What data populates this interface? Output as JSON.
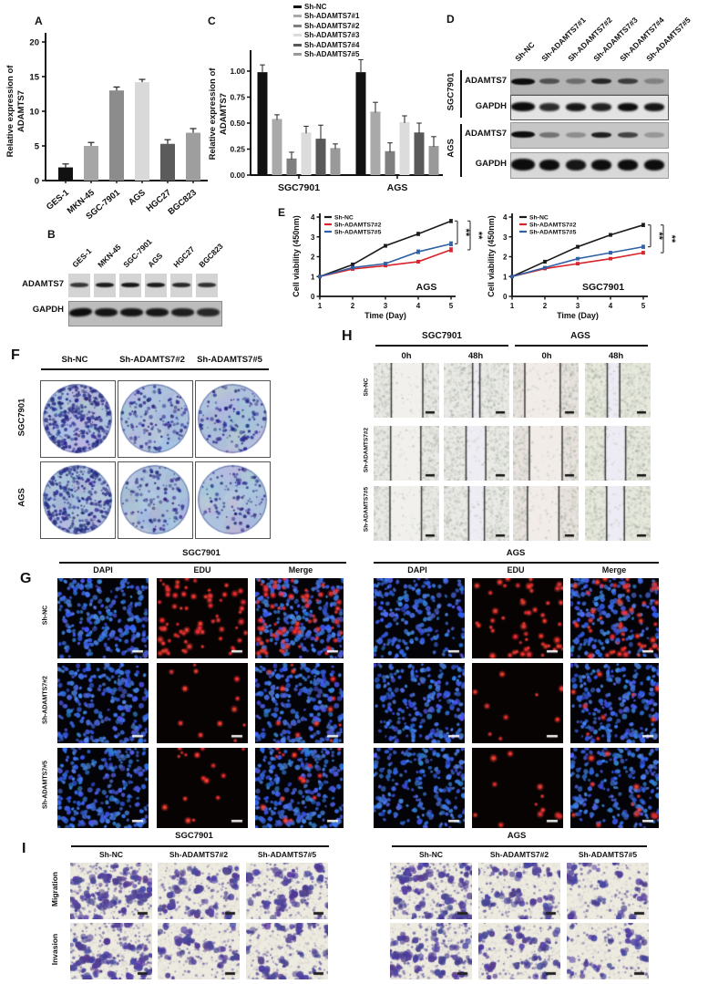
{
  "panels": {
    "a": "A",
    "b": "B",
    "c": "C",
    "d": "D",
    "e": "E",
    "f": "F",
    "g": "G",
    "h": "H",
    "i": "I"
  },
  "chart_data": [
    {
      "id": "A",
      "type": "bar",
      "ylabel_lines": [
        "Relative expression of",
        "ADAMTS7"
      ],
      "categories": [
        "GES-1",
        "MKN-45",
        "SGC-7901",
        "AGS",
        "HGC27",
        "BGC823"
      ],
      "values": [
        1.9,
        5.0,
        13.0,
        14.2,
        5.3,
        6.9
      ],
      "errors": [
        0.5,
        0.5,
        0.5,
        0.4,
        0.6,
        0.6
      ],
      "bar_colors": [
        "#111111",
        "#a6a6a6",
        "#8c8c8c",
        "#d9d9d9",
        "#5b5b5b",
        "#9e9e9e"
      ],
      "ylim": [
        0,
        20
      ],
      "yticks": [
        0,
        5,
        10,
        15,
        20
      ],
      "grid": false
    },
    {
      "id": "C",
      "type": "grouped-bar",
      "ylabel_lines": [
        "Relative expression of",
        "ADAMTS7"
      ],
      "categories": [
        "SGC7901",
        "AGS"
      ],
      "ylim": [
        0,
        1.2
      ],
      "yticks": [
        0,
        0.25,
        0.5,
        0.75,
        1
      ],
      "series": [
        {
          "name": "Sh-NC",
          "color": "#111111",
          "values": [
            0.99,
            0.99
          ],
          "errors": [
            0.07,
            0.12
          ]
        },
        {
          "name": "Sh-ADAMTS7#1",
          "color": "#a9a9a9",
          "values": [
            0.54,
            0.61
          ],
          "errors": [
            0.04,
            0.09
          ]
        },
        {
          "name": "Sh-ADAMTS7#2",
          "color": "#7f7f7f",
          "values": [
            0.16,
            0.23
          ],
          "errors": [
            0.06,
            0.08
          ]
        },
        {
          "name": "Sh-ADAMTS7#3",
          "color": "#dcdcdc",
          "values": [
            0.41,
            0.51
          ],
          "errors": [
            0.06,
            0.06
          ]
        },
        {
          "name": "Sh-ADAMTS7#4",
          "color": "#595959",
          "values": [
            0.35,
            0.41
          ],
          "errors": [
            0.13,
            0.09
          ]
        },
        {
          "name": "Sh-ADAMTS7#5",
          "color": "#999999",
          "values": [
            0.26,
            0.28
          ],
          "errors": [
            0.04,
            0.09
          ]
        }
      ]
    },
    {
      "id": "E1",
      "type": "line",
      "annotation": "AGS",
      "xlabel": "Time (Day)",
      "ylabel": "Cell viability (450nm)",
      "x": [
        1,
        2,
        3,
        4,
        5
      ],
      "ylim": [
        0,
        4
      ],
      "yticks": [
        0,
        1,
        2,
        3,
        4
      ],
      "series": [
        {
          "name": "Sh-NC",
          "color": "#1a1a1a",
          "values": [
            1.0,
            1.6,
            2.55,
            3.15,
            3.8
          ],
          "errors": [
            0.04,
            0.08,
            0.07,
            0.08,
            0.08
          ]
        },
        {
          "name": "Sh-ADAMTS7#2",
          "color": "#d8232a",
          "values": [
            1.0,
            1.38,
            1.55,
            1.75,
            2.35
          ],
          "errors": [
            0.04,
            0.06,
            0.06,
            0.07,
            0.1
          ]
        },
        {
          "name": "Sh-ADAMTS7#5",
          "color": "#2f5fa5",
          "values": [
            1.0,
            1.45,
            1.65,
            2.25,
            2.65
          ],
          "errors": [
            0.04,
            0.06,
            0.07,
            0.09,
            0.1
          ]
        }
      ],
      "significance": [
        {
          "from": 0,
          "to": 2,
          "label": "**"
        },
        {
          "from": 0,
          "to": 1,
          "label": "**"
        }
      ]
    },
    {
      "id": "E2",
      "type": "line",
      "annotation": "SGC7901",
      "xlabel": "Time (Day)",
      "ylabel": "Cell viability (450nm)",
      "x": [
        1,
        2,
        3,
        4,
        5
      ],
      "ylim": [
        0,
        4
      ],
      "yticks": [
        0,
        1,
        2,
        3,
        4
      ],
      "series": [
        {
          "name": "Sh-NC",
          "color": "#1a1a1a",
          "values": [
            1.0,
            1.75,
            2.5,
            3.1,
            3.6
          ],
          "errors": [
            0.04,
            0.07,
            0.07,
            0.07,
            0.08
          ]
        },
        {
          "name": "Sh-ADAMTS7#2",
          "color": "#d8232a",
          "values": [
            1.0,
            1.4,
            1.65,
            1.9,
            2.2
          ],
          "errors": [
            0.04,
            0.05,
            0.06,
            0.06,
            0.07
          ]
        },
        {
          "name": "Sh-ADAMTS7#5",
          "color": "#2f5fa5",
          "values": [
            1.0,
            1.45,
            1.9,
            2.2,
            2.5
          ],
          "errors": [
            0.04,
            0.05,
            0.06,
            0.07,
            0.08
          ]
        }
      ],
      "significance": [
        {
          "from": 0,
          "to": 2,
          "label": "**"
        },
        {
          "from": 0,
          "to": 1,
          "label": "**"
        }
      ]
    }
  ],
  "panelB": {
    "cols": [
      "GES-1",
      "MKN-45",
      "SGC-7901",
      "AGS",
      "HGC27",
      "BGC823"
    ],
    "rows": [
      "ADAMTS7",
      "GAPDH"
    ],
    "intensities": {
      "ADAMTS7": [
        0.78,
        0.92,
        0.95,
        0.92,
        0.86,
        0.82
      ],
      "GAPDH": [
        1,
        0.95,
        0.95,
        0.95,
        0.9,
        0.85
      ]
    }
  },
  "panelD": {
    "cols": [
      "Sh-NC",
      "Sh-ADAMTS7#1",
      "Sh-ADAMTS7#2",
      "Sh-ADAMTS7#3",
      "Sh-ADAMTS7#4",
      "Sh-ADAMTS7#5"
    ],
    "groups": [
      {
        "name": "SGC7901",
        "rows": [
          {
            "label": "ADAMTS7",
            "bg": "#b3b3b3",
            "bandH": 6,
            "intensities": [
              1,
              0.6,
              0.42,
              0.85,
              0.72,
              0.3
            ]
          },
          {
            "label": "GAPDH",
            "bg": "#e3e3e3",
            "bandH": 9,
            "intensities": [
              1,
              0.85,
              0.95,
              0.9,
              1,
              0.95
            ]
          }
        ]
      },
      {
        "name": "AGS",
        "rows": [
          {
            "label": "ADAMTS7",
            "bg": "#c6c6c6",
            "bandH": 6,
            "intensities": [
              1,
              0.45,
              0.3,
              0.9,
              0.7,
              0.25
            ]
          },
          {
            "label": "GAPDH",
            "bg": "#d8d8d8",
            "bandH": 12,
            "intensities": [
              1,
              1,
              0.95,
              1,
              1,
              1
            ]
          }
        ]
      }
    ]
  },
  "panelF": {
    "cols": [
      "Sh-NC",
      "Sh-ADAMTS7#2",
      "Sh-ADAMTS7#5"
    ],
    "rows": [
      "SGC7901",
      "AGS"
    ],
    "densities": [
      [
        300,
        130,
        120
      ],
      [
        260,
        110,
        100
      ]
    ],
    "dish_color": "#adc2dd",
    "colony_color": "#2e3585"
  },
  "panelG": {
    "blocks": [
      {
        "title": "SGC7901"
      },
      {
        "title": "AGS"
      }
    ],
    "channels": [
      "DAPI",
      "EDU",
      "Merge"
    ],
    "rows": [
      "Sh-NC",
      "Sh-ADAMTS7#2",
      "Sh-ADAMTS7#5"
    ],
    "blue_counts": [
      [
        260,
        230,
        250
      ],
      [
        200,
        225,
        215
      ]
    ],
    "red_counts": [
      [
        70,
        12,
        16
      ],
      [
        55,
        9,
        12
      ]
    ],
    "dapi_color": "#3c5ec8",
    "edu_color": "#d42a22"
  },
  "panelH": {
    "blocks": [
      {
        "title": "SGC7901"
      },
      {
        "title": "AGS"
      }
    ],
    "times": [
      "0h",
      "48h"
    ],
    "rows": [
      "Sh-NC",
      "Sh-ADAMTS7#2",
      "Sh-ADAMTS7#5"
    ],
    "col_styles": [
      {
        "base": "#eae9e5",
        "gap": "#f1f0ed"
      },
      {
        "base": "#eaeae6",
        "gap": "#eeedf3"
      },
      {
        "base": "#e9e3df",
        "gap": "#f2ece9"
      },
      {
        "base": "#e7e9dd",
        "gap": "#edebf3"
      }
    ],
    "gaps": [
      [
        [
          [
            0.27,
            0.75
          ],
          [
            0.44,
            0.55
          ]
        ],
        [
          [
            0.26,
            0.72
          ],
          [
            0.34,
            0.64
          ]
        ],
        [
          [
            0.25,
            0.73
          ],
          [
            0.38,
            0.62
          ]
        ]
      ],
      [
        [
          [
            0.18,
            0.72
          ],
          [
            0.34,
            0.53
          ]
        ],
        [
          [
            0.25,
            0.75
          ],
          [
            0.31,
            0.62
          ]
        ],
        [
          [
            0.22,
            0.7
          ],
          [
            0.33,
            0.6
          ]
        ]
      ]
    ]
  },
  "panelI": {
    "blocks": [
      {
        "title": "SGC7901"
      },
      {
        "title": "AGS"
      }
    ],
    "cols": [
      "Sh-NC",
      "Sh-ADAMTS7#2",
      "Sh-ADAMTS7#5"
    ],
    "rows": [
      "Migration",
      "Invasion"
    ],
    "densities": [
      [
        [
          46,
          26,
          30
        ],
        [
          40,
          22,
          26
        ]
      ],
      [
        [
          40,
          24,
          20
        ],
        [
          34,
          22,
          18
        ]
      ]
    ],
    "cell_color": "#564a9b",
    "bg_color": "#edeadf"
  }
}
